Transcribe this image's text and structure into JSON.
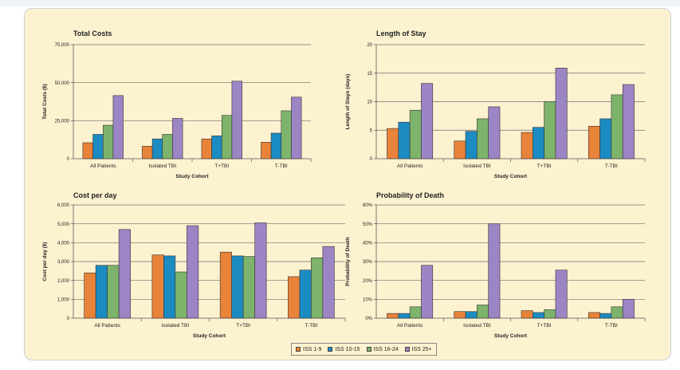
{
  "series_styles": [
    {
      "name": "ISS 1-9",
      "color": "#e8833a"
    },
    {
      "name": "ISS 10-15",
      "color": "#1b8bc2"
    },
    {
      "name": "ISS 16-24",
      "color": "#7db36a"
    },
    {
      "name": "ISS 25+",
      "color": "#9c85c4"
    }
  ],
  "chart_data": [
    {
      "type": "bar",
      "title": "Total Costs",
      "xlabel": "Study Cohort",
      "ylabel": "Total Costs ($)",
      "ylim": [
        0,
        75000
      ],
      "yticks": [
        "0",
        "25,000",
        "50,000",
        "75,000"
      ],
      "ytick_values": [
        0,
        25000,
        50000,
        75000
      ],
      "categories": [
        "All Patients",
        "Isolated TBI",
        "T+TBI",
        "T-TBI"
      ],
      "series": [
        {
          "name": "ISS 1-9",
          "values": [
            10500,
            8200,
            13000,
            10800
          ]
        },
        {
          "name": "ISS 10-15",
          "values": [
            16000,
            13000,
            15000,
            16800
          ]
        },
        {
          "name": "ISS 16-24",
          "values": [
            22000,
            16000,
            28500,
            31500
          ]
        },
        {
          "name": "ISS 25+",
          "values": [
            41500,
            26500,
            51000,
            40500
          ]
        }
      ]
    },
    {
      "type": "bar",
      "title": "Length of Stay",
      "xlabel": "Study Cohort",
      "ylabel": "Length of Stays (days)",
      "ylim": [
        0,
        20
      ],
      "yticks": [
        "0",
        "5",
        "10",
        "15",
        "20"
      ],
      "ytick_values": [
        0,
        5,
        10,
        15,
        20
      ],
      "categories": [
        "All Patients",
        "Isolated TBI",
        "T+TBI",
        "T-TBI"
      ],
      "series": [
        {
          "name": "ISS 1-9",
          "values": [
            5.3,
            3.1,
            4.6,
            5.7
          ]
        },
        {
          "name": "ISS 10-15",
          "values": [
            6.4,
            4.8,
            5.5,
            7.0
          ]
        },
        {
          "name": "ISS 16-24",
          "values": [
            8.5,
            7.0,
            10.0,
            11.2
          ]
        },
        {
          "name": "ISS 25+",
          "values": [
            13.2,
            9.1,
            15.9,
            13.0
          ]
        }
      ]
    },
    {
      "type": "bar",
      "title": "Cost per day",
      "xlabel": "Study Cohort",
      "ylabel": "Cost per day ($)",
      "ylim": [
        0,
        6000
      ],
      "yticks": [
        "0",
        "1,000",
        "2,000",
        "3,000",
        "4,000",
        "5,000",
        "6,000"
      ],
      "ytick_values": [
        0,
        1000,
        2000,
        3000,
        4000,
        5000,
        6000
      ],
      "categories": [
        "All Patients",
        "Isolated TBI",
        "T+TBI",
        "T-TBI"
      ],
      "series": [
        {
          "name": "ISS 1-9",
          "values": [
            2400,
            3350,
            3500,
            2200
          ]
        },
        {
          "name": "ISS 10-15",
          "values": [
            2800,
            3300,
            3300,
            2550
          ]
        },
        {
          "name": "ISS 16-24",
          "values": [
            2800,
            2450,
            3270,
            3200
          ]
        },
        {
          "name": "ISS 25+",
          "values": [
            4700,
            4900,
            5050,
            3800
          ]
        }
      ]
    },
    {
      "type": "bar",
      "title": "Probability of Death",
      "xlabel": "Study Cohort",
      "ylabel": "Probability of Death",
      "ylim": [
        0,
        60
      ],
      "yticks": [
        "0%",
        "10%",
        "20%",
        "30%",
        "40%",
        "50%",
        "60%"
      ],
      "ytick_values": [
        0,
        10,
        20,
        30,
        40,
        50,
        60
      ],
      "categories": [
        "All Patients",
        "Isolated TBI",
        "T+TBI",
        "T-TBI"
      ],
      "series": [
        {
          "name": "ISS 1-9",
          "values": [
            2.5,
            3.5,
            4.0,
            3.0
          ]
        },
        {
          "name": "ISS 10-15",
          "values": [
            2.5,
            3.5,
            3.0,
            2.5
          ]
        },
        {
          "name": "ISS 16-24",
          "values": [
            6.0,
            7.0,
            4.5,
            6.0
          ]
        },
        {
          "name": "ISS 25+",
          "values": [
            28.0,
            50.0,
            25.5,
            10.0
          ]
        }
      ]
    }
  ]
}
